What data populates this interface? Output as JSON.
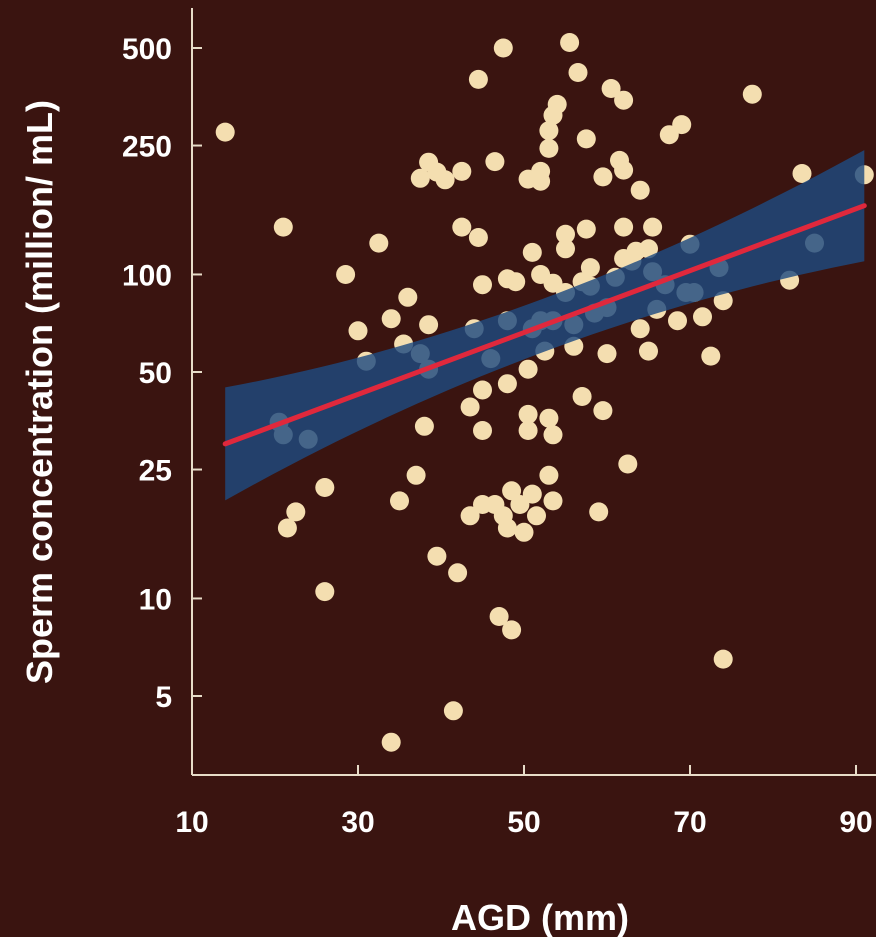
{
  "colors": {
    "background": "#3a1410",
    "axis": "#e8dcc8",
    "point": "#f4deb0",
    "confidence_band": "#1f4a80",
    "regression_line": "#e0283c",
    "text": "#ffffff"
  },
  "chart_data": {
    "type": "scatter",
    "title": "",
    "xlabel": "AGD (mm)",
    "ylabel": "Sperm concentration (million/ mL)",
    "xscale": "linear",
    "yscale": "log",
    "xlim": [
      10,
      90
    ],
    "ylim": [
      3.3,
      560
    ],
    "grid": false,
    "legend": "none",
    "x_ticks": [
      10,
      30,
      50,
      70,
      90
    ],
    "x_tick_labels": [
      "10",
      "30",
      "50",
      "70",
      "90"
    ],
    "y_ticks": [
      5,
      10,
      25,
      50,
      100,
      250,
      500
    ],
    "y_tick_labels": [
      "5",
      "10",
      "25",
      "50",
      "100",
      "250",
      "500"
    ],
    "series": [
      {
        "kind": "points",
        "points": [
          [
            14,
            275
          ],
          [
            21,
            140
          ],
          [
            20.5,
            35
          ],
          [
            21,
            32
          ],
          [
            21.5,
            16.5
          ],
          [
            22.5,
            18.5
          ],
          [
            24,
            31
          ],
          [
            26,
            22
          ],
          [
            26,
            10.5
          ],
          [
            28.5,
            100
          ],
          [
            30,
            67
          ],
          [
            31,
            54
          ],
          [
            32.5,
            125
          ],
          [
            34,
            3.6
          ],
          [
            34,
            73
          ],
          [
            35,
            20
          ],
          [
            35.5,
            61
          ],
          [
            36,
            85
          ],
          [
            37,
            24
          ],
          [
            37.5,
            57
          ],
          [
            37.5,
            198
          ],
          [
            38,
            34
          ],
          [
            38.5,
            51
          ],
          [
            38.5,
            70
          ],
          [
            38.5,
            222
          ],
          [
            39.5,
            13.5
          ],
          [
            39.5,
            207
          ],
          [
            40.5,
            196
          ],
          [
            41.5,
            4.5
          ],
          [
            42,
            12
          ],
          [
            42.5,
            140
          ],
          [
            42.5,
            208
          ],
          [
            43.5,
            18
          ],
          [
            43.5,
            39
          ],
          [
            44,
            68
          ],
          [
            44.5,
            130
          ],
          [
            44.5,
            400
          ],
          [
            45,
            19.5
          ],
          [
            45,
            33
          ],
          [
            45,
            44
          ],
          [
            45,
            93
          ],
          [
            46,
            55
          ],
          [
            46.5,
            19.5
          ],
          [
            46.5,
            223
          ],
          [
            47,
            8.8
          ],
          [
            47.5,
            18
          ],
          [
            47.5,
            500
          ],
          [
            48,
            97
          ],
          [
            48,
            72
          ],
          [
            48,
            16.5
          ],
          [
            48,
            46
          ],
          [
            48.5,
            8
          ],
          [
            48.5,
            21.5
          ],
          [
            49,
            95
          ],
          [
            49.5,
            19.5
          ],
          [
            50,
            16
          ],
          [
            50.5,
            197
          ],
          [
            50.5,
            37
          ],
          [
            50.5,
            33
          ],
          [
            50.5,
            51
          ],
          [
            51,
            68
          ],
          [
            51,
            21
          ],
          [
            51,
            117
          ],
          [
            51.5,
            18
          ],
          [
            52,
            72
          ],
          [
            52,
            100
          ],
          [
            52,
            194
          ],
          [
            52,
            208
          ],
          [
            52.5,
            58
          ],
          [
            53,
            24
          ],
          [
            53,
            36
          ],
          [
            53.5,
            20
          ],
          [
            53.5,
            32
          ],
          [
            53.5,
            72
          ],
          [
            53.5,
            94
          ],
          [
            53.5,
            310
          ],
          [
            53,
            245
          ],
          [
            53,
            278
          ],
          [
            54,
            335
          ],
          [
            55,
            133
          ],
          [
            55,
            120
          ],
          [
            55,
            88
          ],
          [
            55.5,
            520
          ],
          [
            56,
            60
          ],
          [
            56,
            70
          ],
          [
            56.5,
            420
          ],
          [
            57,
            42
          ],
          [
            57,
            95
          ],
          [
            57.5,
            138
          ],
          [
            57.5,
            262
          ],
          [
            58,
            105
          ],
          [
            58,
            92
          ],
          [
            58.5,
            76
          ],
          [
            59,
            18.5
          ],
          [
            59.5,
            38
          ],
          [
            59.5,
            200
          ],
          [
            60,
            57
          ],
          [
            60,
            79
          ],
          [
            60.5,
            375
          ],
          [
            61,
            98
          ],
          [
            61.5,
            225
          ],
          [
            62,
            112
          ],
          [
            62,
            345
          ],
          [
            62,
            210
          ],
          [
            62,
            140
          ],
          [
            62.5,
            26
          ],
          [
            63,
            110
          ],
          [
            63.5,
            118
          ],
          [
            64,
            182
          ],
          [
            64,
            68
          ],
          [
            65,
            58
          ],
          [
            65,
            120
          ],
          [
            65.5,
            102
          ],
          [
            65.5,
            140
          ],
          [
            66,
            78
          ],
          [
            67,
            93
          ],
          [
            67.5,
            270
          ],
          [
            68.5,
            72
          ],
          [
            69,
            290
          ],
          [
            69.5,
            88
          ],
          [
            70,
            124
          ],
          [
            70.5,
            88
          ],
          [
            71.5,
            74
          ],
          [
            72.5,
            56
          ],
          [
            73.5,
            105
          ],
          [
            74,
            83
          ],
          [
            74,
            6.5
          ],
          [
            77.5,
            360
          ],
          [
            82,
            96
          ],
          [
            83.5,
            205
          ],
          [
            85,
            125
          ],
          [
            91,
            203
          ]
        ]
      },
      {
        "kind": "regression_line",
        "points": [
          [
            14,
            30
          ],
          [
            91,
            163
          ]
        ]
      },
      {
        "kind": "confidence_band",
        "x": [
          14,
          91
        ],
        "lower": [
          22,
          125
        ],
        "upper": [
          52,
          285
        ]
      }
    ]
  }
}
